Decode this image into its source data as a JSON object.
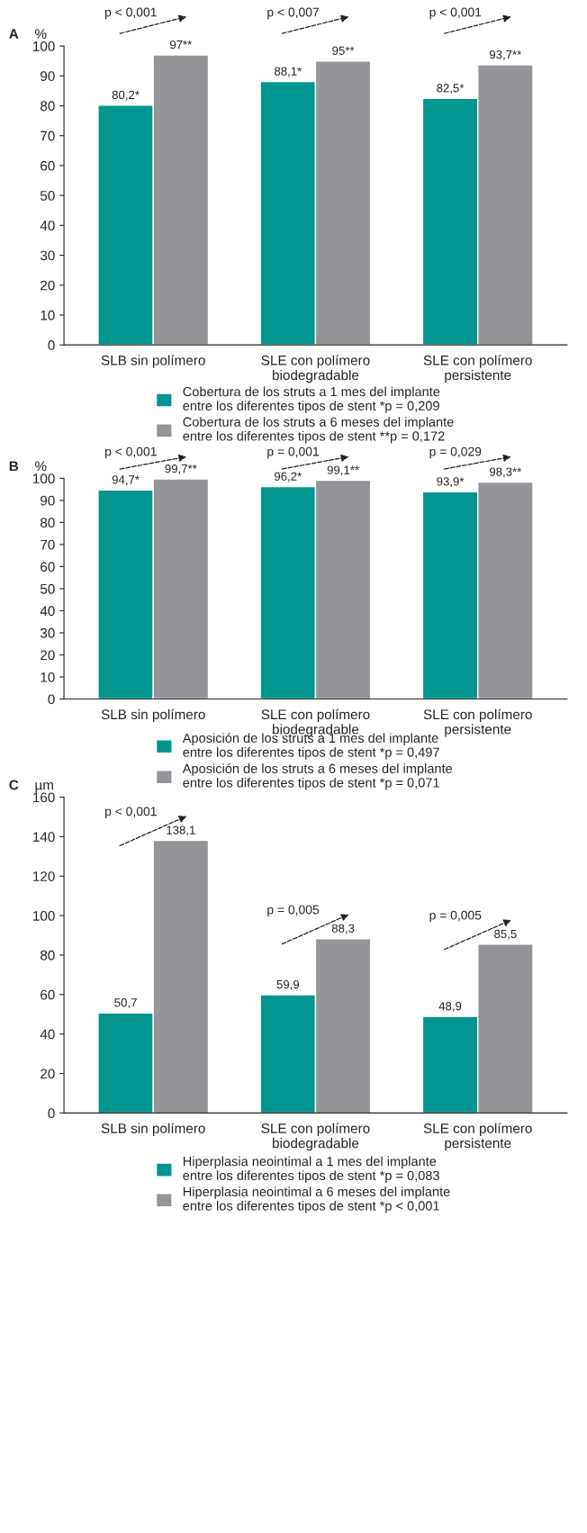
{
  "chart_data": [
    {
      "type": "bar",
      "title": "A",
      "ylabel": "%",
      "categories": [
        "SLB sin polímero",
        "SLE con polímero\nbiodegradable",
        "SLE con polímero\npersistente"
      ],
      "series": [
        {
          "name": "Cobertura de los struts a 1 mes del implante\nentre los diferentes tipos de stent *p = 0,209",
          "color": "#00968f",
          "values": [
            80.2,
            88.1,
            82.5
          ],
          "value_labels": [
            "80,2*",
            "88,1*",
            "82,5*"
          ]
        },
        {
          "name": "Cobertura de los struts a 6 meses del implante\nentre los diferentes tipos de stent **p = 0,172",
          "color": "#939598",
          "values": [
            97,
            95,
            93.7
          ],
          "value_labels": [
            "97**",
            "95**",
            "93,7**"
          ]
        }
      ],
      "ylim": [
        0,
        100
      ],
      "yticks": [
        0,
        10,
        20,
        30,
        40,
        50,
        60,
        70,
        80,
        90,
        100
      ],
      "legend": "bottom",
      "grid": false,
      "annotations": [
        "p < 0,001",
        "p < 0,007",
        "p < 0,001"
      ]
    },
    {
      "type": "bar",
      "title": "B",
      "ylabel": "%",
      "categories": [
        "SLB sin polímero",
        "SLE con polímero\nbiodegradable",
        "SLE con polímero\npersistente"
      ],
      "series": [
        {
          "name": "Aposición de los struts a 1 mes del implante\nentre los diferentes tipos de stent *p = 0,497",
          "color": "#00968f",
          "values": [
            94.7,
            96.2,
            93.9
          ],
          "value_labels": [
            "94,7*",
            "96,2*",
            "93,9*"
          ]
        },
        {
          "name": "Aposición de los struts a 6 meses del implante\nentre los diferentes tipos de stent *p = 0,071",
          "color": "#939598",
          "values": [
            99.7,
            99.1,
            98.3
          ],
          "value_labels": [
            "99,7**",
            "99,1**",
            "98,3**"
          ]
        }
      ],
      "ylim": [
        0,
        100
      ],
      "yticks": [
        0,
        10,
        20,
        30,
        40,
        50,
        60,
        70,
        80,
        90,
        100
      ],
      "legend": "bottom",
      "grid": false,
      "annotations": [
        "p < 0,001",
        "p = 0,001",
        "p = 0,029"
      ]
    },
    {
      "type": "bar",
      "title": "C",
      "ylabel": "µm",
      "categories": [
        "SLB sin polímero",
        "SLE con polímero\nbiodegradable",
        "SLE con polímero\npersistente"
      ],
      "series": [
        {
          "name": "Hiperplasia neointimal a 1 mes del implante\nentre los diferentes tipos de stent *p = 0,083",
          "color": "#00968f",
          "values": [
            50.7,
            59.9,
            48.9
          ],
          "value_labels": [
            "50,7",
            "59,9",
            "48,9"
          ]
        },
        {
          "name": "Hiperplasia neointimal a 6 meses del implante\nentre los diferentes tipos de stent *p < 0,001",
          "color": "#939598",
          "values": [
            138.1,
            88.3,
            85.5
          ],
          "value_labels": [
            "138,1",
            "88,3",
            "85,5"
          ]
        }
      ],
      "ylim": [
        0,
        160
      ],
      "yticks": [
        0,
        20,
        40,
        60,
        80,
        100,
        120,
        140,
        160
      ],
      "legend": "bottom",
      "grid": false,
      "annotations": [
        "p < 0,001",
        "p = 0,005",
        "p = 0,005"
      ]
    }
  ]
}
